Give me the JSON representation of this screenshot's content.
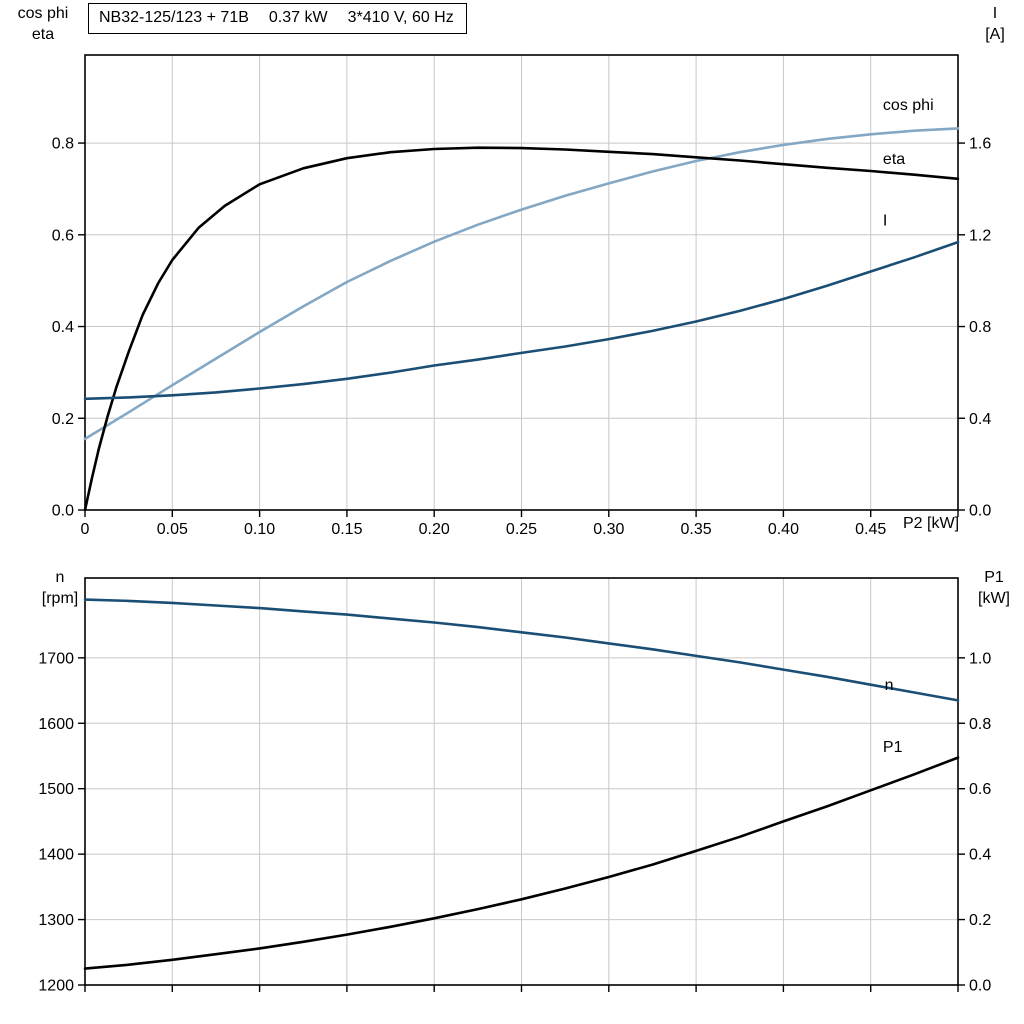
{
  "title_box": {
    "model": "NB32-125/123 + 71B",
    "power": "0.37 kW",
    "voltage": "3*410 V, 60 Hz"
  },
  "axis_titles": {
    "top_left": [
      "cos phi",
      "eta"
    ],
    "top_right": [
      "I",
      "[A]"
    ],
    "x_right": "P2 [kW]",
    "bottom_left": [
      "n",
      "[rpm]"
    ],
    "bottom_right": [
      "P1",
      "[kW]"
    ]
  },
  "colors": {
    "grid": "#c8c8c8",
    "axis": "#000000",
    "cos_phi": "#84a7c4",
    "eta": "#000000",
    "current": "#1b4e74",
    "speed": "#1b4e74",
    "p1": "#000000"
  },
  "chart_data": [
    {
      "type": "line",
      "title": "NB32-125/123 + 71B   0.37 kW   3*410 V, 60 Hz",
      "xlabel": "P2 [kW]",
      "x": {
        "min": 0,
        "max": 0.5,
        "ticks": [
          0,
          0.05,
          0.1,
          0.15,
          0.2,
          0.25,
          0.3,
          0.35,
          0.4,
          0.45,
          0.5
        ],
        "labels": [
          "0",
          "0.05",
          "0.10",
          "0.15",
          "0.20",
          "0.25",
          "0.30",
          "0.35",
          "0.40",
          "0.45",
          ""
        ]
      },
      "y_left": {
        "axis_label": "cos phi / eta",
        "min": 0,
        "max": 0.992,
        "ticks": [
          0,
          0.2,
          0.4,
          0.6,
          0.8
        ],
        "labels": [
          "0.0",
          "0.2",
          "0.4",
          "0.6",
          "0.8"
        ]
      },
      "y_right": {
        "axis_label": "I [A]",
        "min": 0,
        "max": 1.984,
        "ticks": [
          0,
          0.4,
          0.8,
          1.2,
          1.6
        ],
        "labels": [
          "0.0",
          "0.4",
          "0.8",
          "1.2",
          "1.6"
        ]
      },
      "series": [
        {
          "name": "cos phi",
          "axis": "left",
          "color": "#84a7c4",
          "width": 2.6,
          "label_x": 0.457,
          "label_y": 0.872,
          "x": [
            0,
            0.025,
            0.05,
            0.075,
            0.1,
            0.125,
            0.15,
            0.175,
            0.2,
            0.225,
            0.25,
            0.275,
            0.3,
            0.325,
            0.35,
            0.375,
            0.4,
            0.425,
            0.45,
            0.475,
            0.5
          ],
          "y": [
            0.155,
            0.213,
            0.272,
            0.33,
            0.388,
            0.444,
            0.497,
            0.543,
            0.585,
            0.622,
            0.655,
            0.685,
            0.712,
            0.738,
            0.761,
            0.78,
            0.796,
            0.809,
            0.819,
            0.827,
            0.832
          ]
        },
        {
          "name": "eta",
          "axis": "left",
          "color": "#000000",
          "width": 2.6,
          "label_x": 0.457,
          "label_y": 0.754,
          "x": [
            0,
            0.004,
            0.008,
            0.013,
            0.018,
            0.025,
            0.033,
            0.042,
            0.05,
            0.065,
            0.08,
            0.1,
            0.125,
            0.15,
            0.175,
            0.2,
            0.225,
            0.25,
            0.275,
            0.3,
            0.325,
            0.35,
            0.375,
            0.4,
            0.425,
            0.45,
            0.475,
            0.5
          ],
          "y": [
            0,
            0.07,
            0.135,
            0.205,
            0.268,
            0.345,
            0.425,
            0.495,
            0.545,
            0.615,
            0.663,
            0.71,
            0.745,
            0.767,
            0.78,
            0.787,
            0.79,
            0.789,
            0.786,
            0.781,
            0.776,
            0.769,
            0.762,
            0.754,
            0.746,
            0.739,
            0.731,
            0.722
          ]
        },
        {
          "name": "I",
          "axis": "right",
          "color": "#1b4e74",
          "width": 2.6,
          "label_x": 0.457,
          "label_y": 1.24,
          "x": [
            0,
            0.025,
            0.05,
            0.075,
            0.1,
            0.125,
            0.15,
            0.175,
            0.2,
            0.225,
            0.25,
            0.275,
            0.3,
            0.325,
            0.35,
            0.375,
            0.4,
            0.425,
            0.45,
            0.475,
            0.5
          ],
          "y": [
            0.485,
            0.491,
            0.5,
            0.513,
            0.53,
            0.549,
            0.572,
            0.599,
            0.63,
            0.656,
            0.685,
            0.713,
            0.745,
            0.781,
            0.822,
            0.868,
            0.92,
            0.978,
            1.04,
            1.102,
            1.168
          ]
        }
      ]
    },
    {
      "type": "line",
      "title": "",
      "xlabel": "",
      "x": {
        "min": 0,
        "max": 0.5,
        "ticks": [
          0,
          0.05,
          0.1,
          0.15,
          0.2,
          0.25,
          0.3,
          0.35,
          0.4,
          0.45,
          0.5
        ],
        "labels": [
          "",
          "",
          "",
          "",
          "",
          "",
          "",
          "",
          "",
          "",
          ""
        ]
      },
      "y_left": {
        "axis_label": "n [rpm]",
        "min": 1200,
        "max": 1822,
        "ticks": [
          1200,
          1300,
          1400,
          1500,
          1600,
          1700
        ],
        "labels": [
          "1200",
          "1300",
          "1400",
          "1500",
          "1600",
          "1700"
        ]
      },
      "y_right": {
        "axis_label": "P1 [kW]",
        "min": 0,
        "max": 1.244,
        "ticks": [
          0,
          0.2,
          0.4,
          0.6,
          0.8,
          1.0
        ],
        "labels": [
          "0.0",
          "0.2",
          "0.4",
          "0.6",
          "0.8",
          "1.0"
        ]
      },
      "series": [
        {
          "name": "n",
          "axis": "left",
          "color": "#1b4e74",
          "width": 2.6,
          "label_x": 0.458,
          "label_y": 1651,
          "x": [
            0,
            0.025,
            0.05,
            0.075,
            0.1,
            0.125,
            0.15,
            0.175,
            0.2,
            0.225,
            0.25,
            0.275,
            0.3,
            0.325,
            0.35,
            0.375,
            0.4,
            0.425,
            0.45,
            0.475,
            0.5
          ],
          "y": [
            1789,
            1787,
            1784,
            1780,
            1776,
            1771,
            1766,
            1760,
            1754,
            1747,
            1739,
            1731,
            1722,
            1713,
            1703,
            1693,
            1682,
            1671,
            1659,
            1647,
            1635
          ]
        },
        {
          "name": "P1",
          "axis": "right",
          "color": "#000000",
          "width": 2.6,
          "label_x": 0.457,
          "label_y": 0.712,
          "x": [
            0,
            0.025,
            0.05,
            0.075,
            0.1,
            0.125,
            0.15,
            0.175,
            0.2,
            0.225,
            0.25,
            0.275,
            0.3,
            0.325,
            0.35,
            0.375,
            0.4,
            0.425,
            0.45,
            0.475,
            0.5
          ],
          "y": [
            0.05,
            0.062,
            0.077,
            0.094,
            0.112,
            0.132,
            0.154,
            0.178,
            0.204,
            0.232,
            0.262,
            0.295,
            0.33,
            0.368,
            0.41,
            0.453,
            0.5,
            0.546,
            0.595,
            0.644,
            0.695
          ]
        }
      ]
    }
  ]
}
